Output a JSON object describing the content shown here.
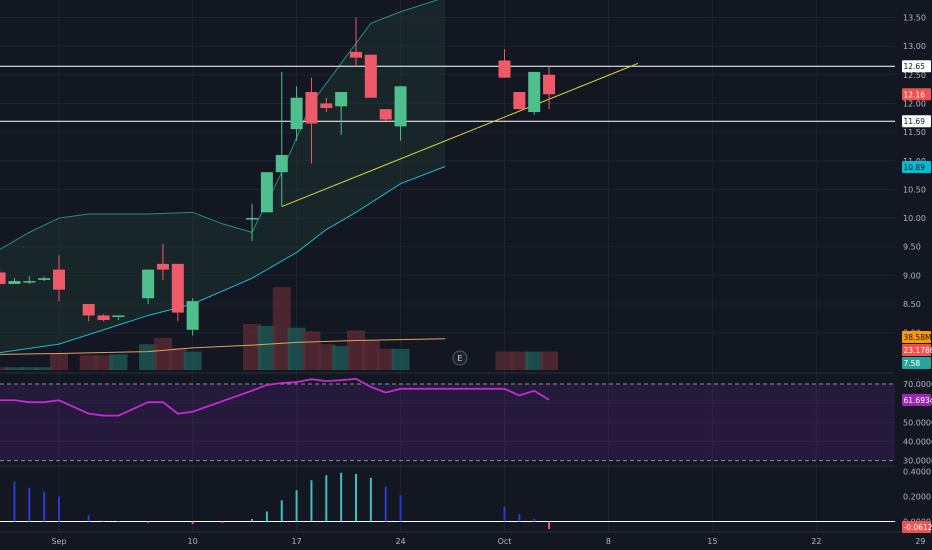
{
  "chart_data": [
    {
      "type": "candlestick",
      "panel": "price",
      "x_axis": {
        "ticks": [
          {
            "day": 0,
            "label": "Sep"
          },
          {
            "day": 9,
            "label": "10"
          },
          {
            "day": 16,
            "label": "17"
          },
          {
            "day": 23,
            "label": "24"
          },
          {
            "day": 30,
            "label": "Oct"
          },
          {
            "day": 37,
            "label": "8"
          },
          {
            "day": 44,
            "label": "15"
          },
          {
            "day": 51,
            "label": "22"
          },
          {
            "day": 58,
            "label": "29"
          }
        ]
      },
      "y_axis": {
        "range": [
          7.6,
          13.85
        ],
        "ticks": [
          "8.00",
          "8.50",
          "9.00",
          "9.50",
          "10.00",
          "10.50",
          "11.00",
          "11.50",
          "12.00",
          "12.50",
          "13.00",
          "13.50"
        ]
      },
      "candles": [
        {
          "day": -4,
          "o": 9.05,
          "h": 9.1,
          "l": 8.8,
          "c": 8.85
        },
        {
          "day": -3,
          "o": 8.85,
          "h": 8.95,
          "l": 8.85,
          "c": 8.9
        },
        {
          "day": -2,
          "o": 8.88,
          "h": 8.98,
          "l": 8.85,
          "c": 8.9
        },
        {
          "day": -1,
          "o": 8.92,
          "h": 8.98,
          "l": 8.9,
          "c": 8.95
        },
        {
          "day": 0,
          "o": 9.1,
          "h": 9.35,
          "l": 8.55,
          "c": 8.75
        },
        {
          "day": 2,
          "o": 8.5,
          "h": 8.5,
          "l": 8.2,
          "c": 8.3
        },
        {
          "day": 3,
          "o": 8.3,
          "h": 8.32,
          "l": 8.2,
          "c": 8.22
        },
        {
          "day": 4,
          "o": 8.28,
          "h": 8.3,
          "l": 8.22,
          "c": 8.3
        },
        {
          "day": 6,
          "o": 8.6,
          "h": 9.1,
          "l": 8.5,
          "c": 9.1
        },
        {
          "day": 7,
          "o": 9.2,
          "h": 9.55,
          "l": 8.92,
          "c": 9.1
        },
        {
          "day": 8,
          "o": 9.2,
          "h": 9.2,
          "l": 8.2,
          "c": 8.35
        },
        {
          "day": 9,
          "o": 8.05,
          "h": 8.6,
          "l": 7.95,
          "c": 8.55
        },
        {
          "day": 13,
          "o": 10.0,
          "h": 10.25,
          "l": 9.6,
          "c": 10.0
        },
        {
          "day": 14,
          "o": 10.1,
          "h": 10.8,
          "l": 10.1,
          "c": 10.8
        },
        {
          "day": 15,
          "o": 10.8,
          "h": 12.55,
          "l": 10.2,
          "c": 11.1
        },
        {
          "day": 16,
          "o": 11.55,
          "h": 12.3,
          "l": 11.35,
          "c": 12.1
        },
        {
          "day": 17,
          "o": 12.2,
          "h": 12.45,
          "l": 10.95,
          "c": 11.65
        },
        {
          "day": 18,
          "o": 12.0,
          "h": 12.1,
          "l": 11.85,
          "c": 11.92
        },
        {
          "day": 19,
          "o": 11.95,
          "h": 12.2,
          "l": 11.45,
          "c": 12.2
        },
        {
          "day": 20,
          "o": 12.9,
          "h": 13.5,
          "l": 12.65,
          "c": 12.8
        },
        {
          "day": 21,
          "o": 12.85,
          "h": 12.85,
          "l": 12.1,
          "c": 12.1
        },
        {
          "day": 22,
          "o": 11.9,
          "h": 11.9,
          "l": 11.7,
          "c": 11.72
        },
        {
          "day": 23,
          "o": 11.6,
          "h": 12.3,
          "l": 11.35,
          "c": 12.3
        },
        {
          "day": 30,
          "o": 12.75,
          "h": 12.95,
          "l": 12.45,
          "c": 12.45
        },
        {
          "day": 31,
          "o": 12.2,
          "h": 12.2,
          "l": 11.9,
          "c": 11.9
        },
        {
          "day": 32,
          "o": 11.85,
          "h": 12.55,
          "l": 11.8,
          "c": 12.55
        },
        {
          "day": 33,
          "o": 12.5,
          "h": 12.65,
          "l": 11.9,
          "c": 12.16
        }
      ],
      "horizontal_lines": [
        12.65,
        11.69
      ],
      "trendline": {
        "from": {
          "day": 15,
          "value": 10.2
        },
        "to": {
          "day": 39,
          "value": 12.7
        }
      },
      "bollinger_upper": [
        {
          "day": -4,
          "value": 9.45
        },
        {
          "day": -2,
          "value": 9.75
        },
        {
          "day": 0,
          "value": 10.0
        },
        {
          "day": 2,
          "value": 10.07
        },
        {
          "day": 6,
          "value": 10.07
        },
        {
          "day": 9,
          "value": 10.1
        },
        {
          "day": 11,
          "value": 9.9
        },
        {
          "day": 13,
          "value": 9.75
        },
        {
          "day": 15,
          "value": 10.8
        },
        {
          "day": 17,
          "value": 12.0
        },
        {
          "day": 19,
          "value": 12.7
        },
        {
          "day": 21,
          "value": 13.4
        },
        {
          "day": 23,
          "value": 13.6
        },
        {
          "day": 26,
          "value": 13.85
        }
      ],
      "bollinger_middle": [
        {
          "day": -4,
          "value": 7.65
        },
        {
          "day": 0,
          "value": 7.8
        },
        {
          "day": 6,
          "value": 8.3
        },
        {
          "day": 9,
          "value": 8.5
        },
        {
          "day": 13,
          "value": 8.95
        },
        {
          "day": 16,
          "value": 9.4
        },
        {
          "day": 18,
          "value": 9.8
        },
        {
          "day": 20,
          "value": 10.1
        },
        {
          "day": 23,
          "value": 10.6
        },
        {
          "day": 26,
          "value": 10.9
        }
      ],
      "markers": [
        {
          "day": 27,
          "label": "E"
        }
      ],
      "last_price": "12.16",
      "badges": [
        {
          "label": "12.65",
          "color": "#ffffff",
          "text_color": "#131722"
        },
        {
          "label": "12.16",
          "color": "#ef5350",
          "text_color": "#ffffff"
        },
        {
          "label": "11.69",
          "color": "#ffffff",
          "text_color": "#131722"
        },
        {
          "label": "10.89",
          "color": "#00bcd4",
          "text_color": "#131722"
        },
        {
          "label": "38.58M",
          "color": "#ff9800",
          "text_color": "#131722"
        },
        {
          "label": "23.1786",
          "color": "#ef5350",
          "text_color": "#ffffff"
        },
        {
          "label": "7.58",
          "color": "#26a69a",
          "text_color": "#ffffff"
        }
      ]
    },
    {
      "type": "bar",
      "panel": "volume",
      "bars": [
        {
          "day": -4,
          "v": 3,
          "up": false
        },
        {
          "day": -3,
          "v": 3,
          "up": true
        },
        {
          "day": -2,
          "v": 3,
          "up": true
        },
        {
          "day": -1,
          "v": 3,
          "up": true
        },
        {
          "day": 0,
          "v": 18,
          "up": false
        },
        {
          "day": 2,
          "v": 16,
          "up": false
        },
        {
          "day": 3,
          "v": 16,
          "up": false
        },
        {
          "day": 4,
          "v": 17,
          "up": true
        },
        {
          "day": 6,
          "v": 28,
          "up": true
        },
        {
          "day": 7,
          "v": 35,
          "up": false
        },
        {
          "day": 8,
          "v": 24,
          "up": false
        },
        {
          "day": 9,
          "v": 20,
          "up": true
        },
        {
          "day": 13,
          "v": 50,
          "up": false
        },
        {
          "day": 14,
          "v": 48,
          "up": true
        },
        {
          "day": 15,
          "v": 90,
          "up": false
        },
        {
          "day": 16,
          "v": 46,
          "up": true
        },
        {
          "day": 17,
          "v": 42,
          "up": false
        },
        {
          "day": 18,
          "v": 28,
          "up": false
        },
        {
          "day": 19,
          "v": 26,
          "up": true
        },
        {
          "day": 20,
          "v": 43,
          "up": false
        },
        {
          "day": 21,
          "v": 32,
          "up": false
        },
        {
          "day": 22,
          "v": 23,
          "up": false
        },
        {
          "day": 23,
          "v": 23,
          "up": true
        },
        {
          "day": 30,
          "v": 20,
          "up": false
        },
        {
          "day": 31,
          "v": 20,
          "up": false
        },
        {
          "day": 32,
          "v": 20,
          "up": true
        },
        {
          "day": 33,
          "v": 20,
          "up": false
        }
      ],
      "volume_ma": [
        {
          "day": -4,
          "value": 17
        },
        {
          "day": 0,
          "value": 18
        },
        {
          "day": 6,
          "value": 20
        },
        {
          "day": 9,
          "value": 24
        },
        {
          "day": 13,
          "value": 27
        },
        {
          "day": 16,
          "value": 30
        },
        {
          "day": 20,
          "value": 32
        },
        {
          "day": 23,
          "value": 33
        },
        {
          "day": 26,
          "value": 34
        }
      ]
    },
    {
      "type": "line",
      "panel": "rsi",
      "y_axis": {
        "range": [
          27,
          77
        ],
        "ticks": [
          "70.0000",
          "60.0000",
          "50.0000",
          "40.0000",
          "30.0000"
        ]
      },
      "bands": [
        70,
        30
      ],
      "points": [
        {
          "day": -4,
          "value": 61.5
        },
        {
          "day": -3,
          "value": 61.5
        },
        {
          "day": -2,
          "value": 60.5
        },
        {
          "day": -1,
          "value": 60.5
        },
        {
          "day": 0,
          "value": 61.5
        },
        {
          "day": 2,
          "value": 54.5
        },
        {
          "day": 3,
          "value": 53.5
        },
        {
          "day": 4,
          "value": 53.5
        },
        {
          "day": 6,
          "value": 60.5
        },
        {
          "day": 7,
          "value": 60.5
        },
        {
          "day": 8,
          "value": 54.5
        },
        {
          "day": 9,
          "value": 55.5
        },
        {
          "day": 13,
          "value": 66.5
        },
        {
          "day": 14,
          "value": 69.5
        },
        {
          "day": 15,
          "value": 70.5
        },
        {
          "day": 16,
          "value": 71
        },
        {
          "day": 17,
          "value": 72.5
        },
        {
          "day": 18,
          "value": 71.5
        },
        {
          "day": 19,
          "value": 72
        },
        {
          "day": 20,
          "value": 72.7
        },
        {
          "day": 21,
          "value": 68.5
        },
        {
          "day": 22,
          "value": 65.5
        },
        {
          "day": 23,
          "value": 67.5
        },
        {
          "day": 30,
          "value": 67.5
        },
        {
          "day": 31,
          "value": 64
        },
        {
          "day": 32,
          "value": 66.5
        },
        {
          "day": 33,
          "value": 61.6934
        }
      ],
      "last_value": "61.6934"
    },
    {
      "type": "bar",
      "panel": "histogram",
      "y_axis": {
        "range": [
          -0.05,
          0.5
        ],
        "ticks": [
          "0.4000",
          "0.2000",
          "0.0000"
        ]
      },
      "bars": [
        {
          "day": -3,
          "v": 0.32
        },
        {
          "day": -2,
          "v": 0.27
        },
        {
          "day": -1,
          "v": 0.24
        },
        {
          "day": 0,
          "v": 0.2
        },
        {
          "day": 2,
          "v": 0.05
        },
        {
          "day": 3,
          "v": 0.01
        },
        {
          "day": 4,
          "v": 0.0
        },
        {
          "day": 6,
          "v": -0.01
        },
        {
          "day": 9,
          "v": -0.02
        },
        {
          "day": 11,
          "v": -0.01
        },
        {
          "day": 13,
          "v": 0.02
        },
        {
          "day": 14,
          "v": 0.08
        },
        {
          "day": 15,
          "v": 0.17
        },
        {
          "day": 16,
          "v": 0.25
        },
        {
          "day": 17,
          "v": 0.33
        },
        {
          "day": 18,
          "v": 0.37
        },
        {
          "day": 19,
          "v": 0.39
        },
        {
          "day": 20,
          "v": 0.38
        },
        {
          "day": 21,
          "v": 0.35
        },
        {
          "day": 22,
          "v": 0.28
        },
        {
          "day": 23,
          "v": 0.21
        },
        {
          "day": 30,
          "v": 0.12
        },
        {
          "day": 31,
          "v": 0.06
        },
        {
          "day": 32,
          "v": 0.02
        },
        {
          "day": 33,
          "v": -0.06
        }
      ],
      "last_value": "-0.0612"
    }
  ]
}
